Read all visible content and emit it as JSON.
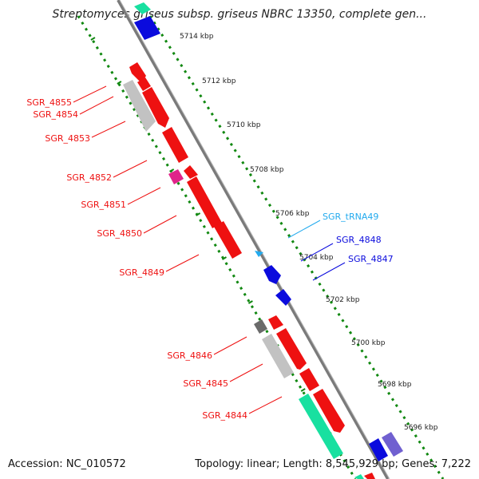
{
  "title": "Streptomyces griseus subsp. griseus NBRC 13350, complete gen...",
  "accession": "Accession: NC_010572",
  "stats": "Topology: linear; Length: 8,545,929 bp; Genes: 7,222",
  "colors": {
    "gene_red": "#ee1111",
    "gene_blue": "#0b0bdd",
    "gene_gray": "#c2c2c2",
    "gene_dark_gray": "#6a6a6a",
    "gene_pink": "#e0248a",
    "gene_teal": "#18e0a0",
    "gene_purple": "#7060d0",
    "trna_cyan": "#22aaee",
    "backbone": "#7a7a7a",
    "scale_dots": "#118811"
  },
  "scale_labels": [
    "5714 kbp",
    "5712 kbp",
    "5710 kbp",
    "5708 kbp",
    "5706 kbp",
    "5704 kbp",
    "5702 kbp",
    "5700 kbp",
    "5698 kbp",
    "5696 kbp"
  ],
  "gene_labels": [
    {
      "text": "SGR_4855",
      "color": "red"
    },
    {
      "text": "SGR_4854",
      "color": "red"
    },
    {
      "text": "SGR_4853",
      "color": "red"
    },
    {
      "text": "SGR_4852",
      "color": "red"
    },
    {
      "text": "SGR_4851",
      "color": "red"
    },
    {
      "text": "SGR_4850",
      "color": "red"
    },
    {
      "text": "SGR_4849",
      "color": "red"
    },
    {
      "text": "SGR_tRNA49",
      "color": "cyan"
    },
    {
      "text": "SGR_4848",
      "color": "blue"
    },
    {
      "text": "SGR_4847",
      "color": "blue"
    },
    {
      "text": "SGR_4846",
      "color": "red"
    },
    {
      "text": "SGR_4845",
      "color": "red"
    },
    {
      "text": "SGR_4844",
      "color": "red"
    }
  ]
}
